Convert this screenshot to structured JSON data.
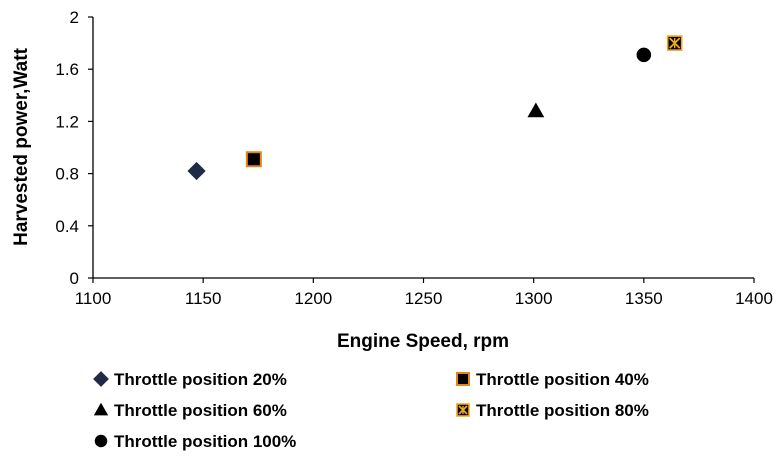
{
  "chart_data": {
    "type": "scatter",
    "title": "",
    "xlabel": "Engine Speed, rpm",
    "ylabel": "Harvested power,Watt",
    "xlim": [
      1100,
      1400
    ],
    "ylim": [
      0,
      2
    ],
    "x_ticks": [
      1100,
      1150,
      1200,
      1250,
      1300,
      1350,
      1400
    ],
    "y_ticks": [
      0,
      0.4,
      0.8,
      1.2,
      1.6,
      2
    ],
    "y_tick_labels": [
      "0",
      "0.4",
      "0.8",
      "1.2",
      "1.6",
      "2"
    ],
    "grid": false,
    "legend_position": "bottom",
    "series": [
      {
        "name": "Throttle position 20%",
        "marker": "diamond",
        "x": [
          1147
        ],
        "y": [
          0.82
        ]
      },
      {
        "name": "Throttle position 40%",
        "marker": "square",
        "x": [
          1173
        ],
        "y": [
          0.91
        ]
      },
      {
        "name": "Throttle position 60%",
        "marker": "triangle",
        "x": [
          1301
        ],
        "y": [
          1.28
        ]
      },
      {
        "name": "Throttle position 80%",
        "marker": "square-x",
        "x": [
          1364
        ],
        "y": [
          1.8
        ]
      },
      {
        "name": "Throttle position 100%",
        "marker": "circle",
        "x": [
          1350
        ],
        "y": [
          1.71
        ]
      }
    ]
  },
  "colors": {
    "axis": "#000000",
    "diamond_fill": "#1f2a44",
    "square_fill": "#000000",
    "square_edge": "#e0861a",
    "square_x_fill": "#000000",
    "square_x_mark": "#f2a81d",
    "triangle_fill": "#000000",
    "circle_fill": "#000000"
  }
}
